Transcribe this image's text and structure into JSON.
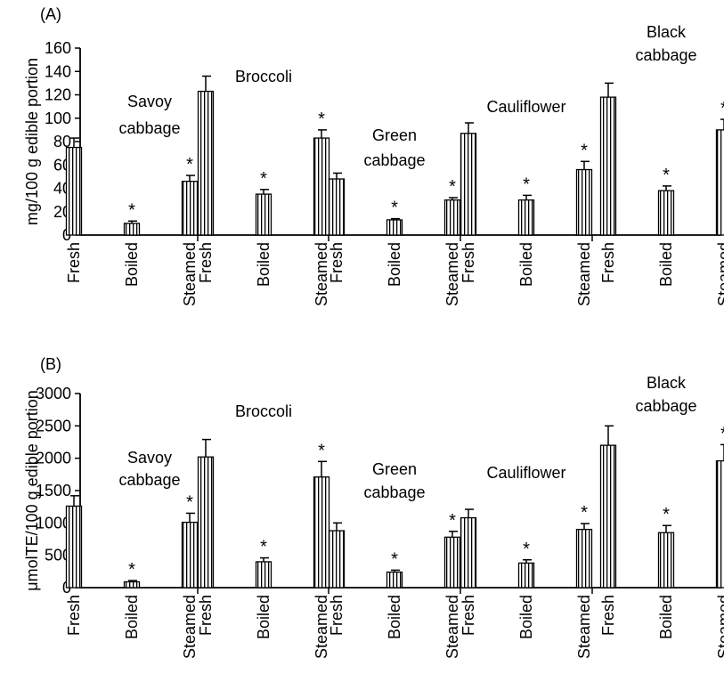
{
  "chart_data": [
    {
      "type": "bar",
      "panel_label": "(A)",
      "ylabel": "mg/100 g edible portion",
      "ylim": [
        0,
        160
      ],
      "yticks": [
        "0",
        "20",
        "40",
        "60",
        "80",
        "100",
        "120",
        "140",
        "160"
      ],
      "groups": [
        {
          "label": [
            "Savoy",
            "cabbage"
          ],
          "bars": [
            {
              "category": "Fresh",
              "value": 75,
              "error": 8,
              "star": ""
            },
            {
              "category": "Boiled",
              "value": 10,
              "error": 2,
              "star": "*"
            },
            {
              "category": "Steamed",
              "value": 46,
              "error": 5,
              "star": "*"
            }
          ]
        },
        {
          "label": [
            "Broccoli"
          ],
          "bars": [
            {
              "category": "Fresh",
              "value": 123,
              "error": 13,
              "star": ""
            },
            {
              "category": "Boiled",
              "value": 35,
              "error": 4,
              "star": "*"
            },
            {
              "category": "Steamed",
              "value": 83,
              "error": 7,
              "star": "*"
            }
          ]
        },
        {
          "label": [
            "Green",
            "cabbage"
          ],
          "bars": [
            {
              "category": "Fresh",
              "value": 48,
              "error": 5,
              "star": ""
            },
            {
              "category": "Boiled",
              "value": 13,
              "error": 1,
              "star": "*"
            },
            {
              "category": "Steamed",
              "value": 30,
              "error": 2,
              "star": "*"
            }
          ]
        },
        {
          "label": [
            "Cauliflower"
          ],
          "bars": [
            {
              "category": "Fresh",
              "value": 87,
              "error": 9,
              "star": ""
            },
            {
              "category": "Boiled",
              "value": 30,
              "error": 4,
              "star": "*"
            },
            {
              "category": "Steamed",
              "value": 56,
              "error": 7,
              "star": "*"
            }
          ]
        },
        {
          "label": [
            "Black",
            "cabbage"
          ],
          "bars": [
            {
              "category": "Fresh",
              "value": 118,
              "error": 12,
              "star": ""
            },
            {
              "category": "Boiled",
              "value": 38,
              "error": 4,
              "star": "*"
            },
            {
              "category": "Steamed",
              "value": 90,
              "error": 9,
              "star": "*"
            }
          ]
        }
      ]
    },
    {
      "type": "bar",
      "panel_label": "(B)",
      "ylabel": "μmolTE/100 g edible portion",
      "ylim": [
        0,
        3000
      ],
      "yticks": [
        "0",
        "500",
        "1000",
        "1500",
        "2000",
        "2500",
        "3000"
      ],
      "groups": [
        {
          "label": [
            "Savoy",
            "cabbage"
          ],
          "bars": [
            {
              "category": "Fresh",
              "value": 1260,
              "error": 160,
              "star": ""
            },
            {
              "category": "Boiled",
              "value": 90,
              "error": 20,
              "star": "*"
            },
            {
              "category": "Steamed",
              "value": 1010,
              "error": 140,
              "star": "*"
            }
          ]
        },
        {
          "label": [
            "Broccoli"
          ],
          "bars": [
            {
              "category": "Fresh",
              "value": 2020,
              "error": 270,
              "star": ""
            },
            {
              "category": "Boiled",
              "value": 400,
              "error": 60,
              "star": "*"
            },
            {
              "category": "Steamed",
              "value": 1710,
              "error": 240,
              "star": "*"
            }
          ]
        },
        {
          "label": [
            "Green",
            "cabbage"
          ],
          "bars": [
            {
              "category": "Fresh",
              "value": 880,
              "error": 120,
              "star": ""
            },
            {
              "category": "Boiled",
              "value": 240,
              "error": 30,
              "star": "*"
            },
            {
              "category": "Steamed",
              "value": 780,
              "error": 90,
              "star": "*"
            }
          ]
        },
        {
          "label": [
            "Cauliflower"
          ],
          "bars": [
            {
              "category": "Fresh",
              "value": 1080,
              "error": 130,
              "star": ""
            },
            {
              "category": "Boiled",
              "value": 380,
              "error": 50,
              "star": "*"
            },
            {
              "category": "Steamed",
              "value": 900,
              "error": 90,
              "star": "*"
            }
          ]
        },
        {
          "label": [
            "Black",
            "cabbage"
          ],
          "bars": [
            {
              "category": "Fresh",
              "value": 2200,
              "error": 300,
              "star": ""
            },
            {
              "category": "Boiled",
              "value": 850,
              "error": 110,
              "star": "*"
            },
            {
              "category": "Steamed",
              "value": 1960,
              "error": 250,
              "star": "*"
            }
          ]
        }
      ]
    }
  ]
}
